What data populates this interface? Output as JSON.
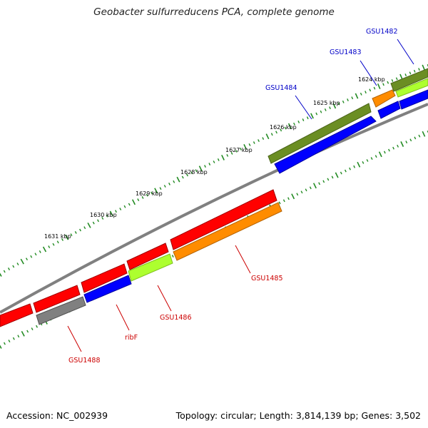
{
  "title": "Geobacter sulfurreducens PCA, complete genome",
  "footer": {
    "accession": "Accession: NC_002939",
    "summary": "Topology: circular; Length: 3,814,139 bp; Genes: 3,502"
  },
  "scale_labels": [
    "1624 kbp",
    "1625 kbp",
    "1626 kbp",
    "1627 kbp",
    "1628 kbp",
    "1629 kbp",
    "1630 kbp",
    "1631 kbp"
  ],
  "colors": {
    "red": "#ff0000",
    "blue": "#0000ff",
    "olive": "#6b8e23",
    "orange": "#ff8c00",
    "lime": "#adff2f",
    "gray": "#808080",
    "tick": "#228b22",
    "backbone": "#808080",
    "label_top": "#0000c8",
    "label_bottom": "#cc0000"
  },
  "gene_labels_top": [
    "GSU1482",
    "GSU1483",
    "GSU1484"
  ],
  "gene_labels_bottom": [
    "GSU1485",
    "GSU1486",
    "ribF",
    "GSU1488"
  ]
}
